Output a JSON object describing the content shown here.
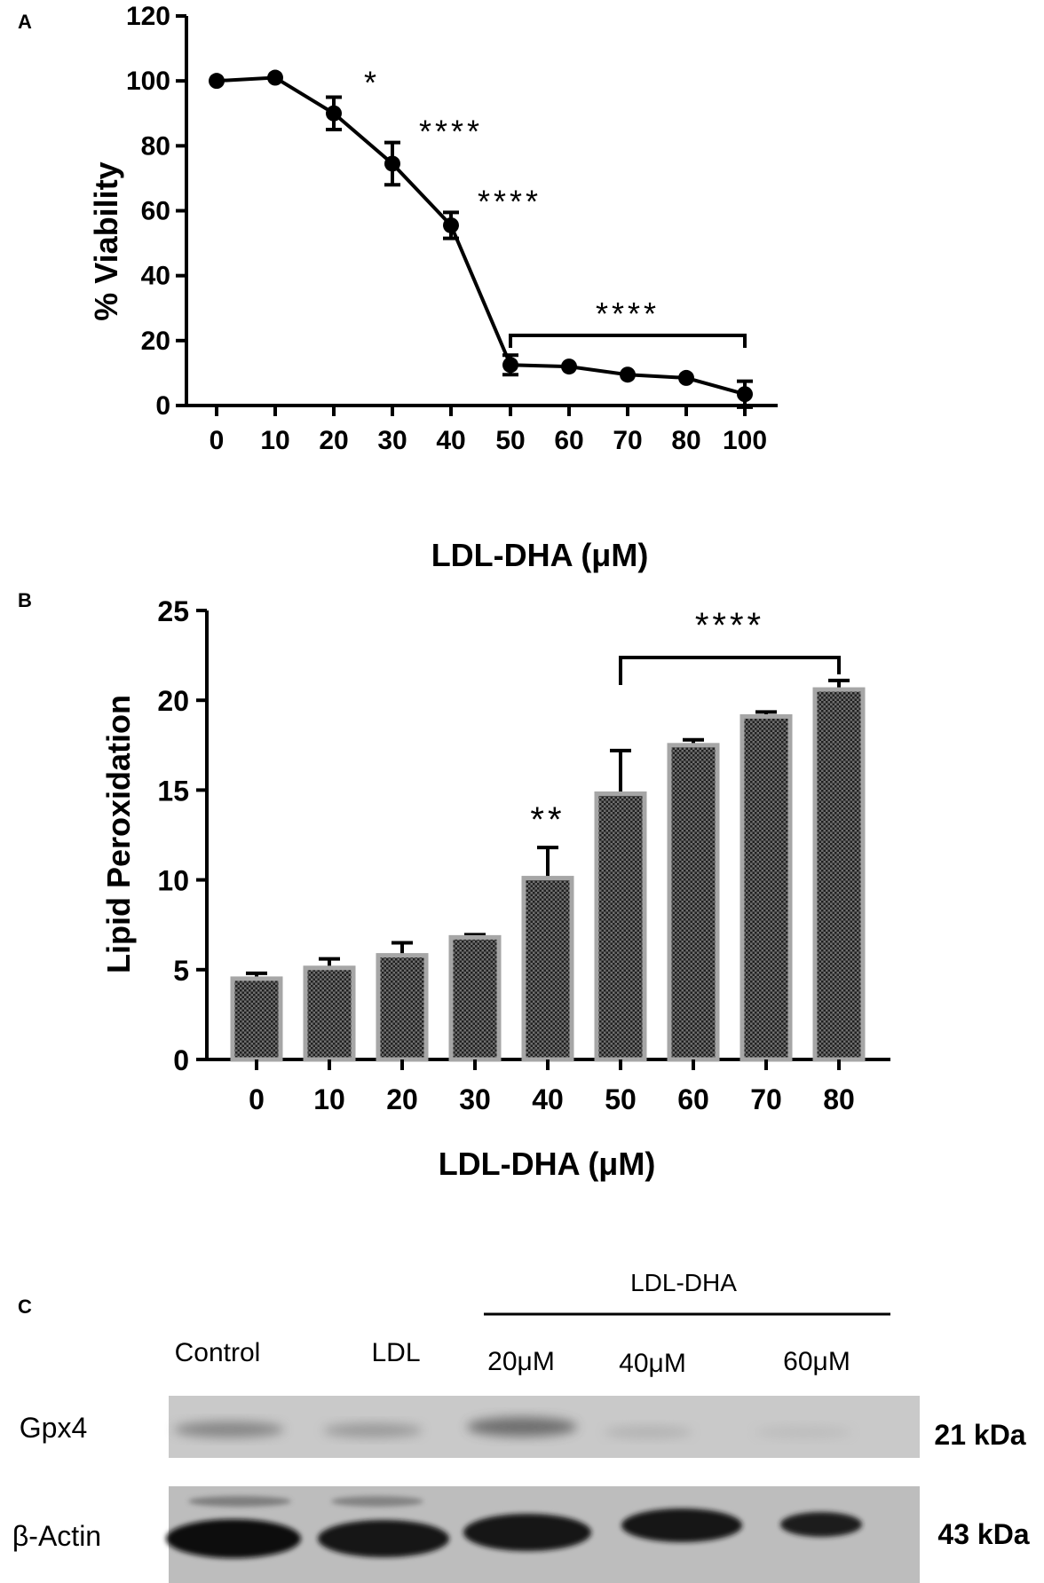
{
  "chart_data": [
    {
      "panel": "A",
      "type": "line",
      "xlabel": "LDL-DHA (μM)",
      "ylabel": "% Viability",
      "categories": [
        "0",
        "10",
        "20",
        "30",
        "40",
        "50",
        "60",
        "70",
        "80",
        "100"
      ],
      "values": [
        100,
        101,
        90,
        74.5,
        55.5,
        12.5,
        12,
        9.5,
        8.5,
        3.5
      ],
      "errors": [
        0,
        0,
        5,
        6.5,
        4,
        3,
        0,
        0,
        0,
        4
      ],
      "ylim": [
        0,
        120
      ],
      "yticks": [
        "0",
        "20",
        "40",
        "60",
        "80",
        "100",
        "120"
      ],
      "annotations": [
        {
          "category_index": 2,
          "text": "*"
        },
        {
          "category_index": 3,
          "text": "****"
        },
        {
          "category_index": 4,
          "text": "****"
        }
      ],
      "bracket": {
        "from_index": 5,
        "to_index": 9,
        "text": "****"
      }
    },
    {
      "panel": "B",
      "type": "bar",
      "xlabel": "LDL-DHA (μM)",
      "ylabel": "Lipid  Peroxidation",
      "categories": [
        "0",
        "10",
        "20",
        "30",
        "40",
        "50",
        "60",
        "70",
        "80"
      ],
      "values": [
        4.5,
        5.1,
        5.8,
        6.8,
        10.1,
        14.8,
        17.5,
        19.1,
        20.6
      ],
      "errors": [
        0.3,
        0.5,
        0.7,
        0.15,
        1.7,
        2.4,
        0.3,
        0.25,
        0.5
      ],
      "ylim": [
        0,
        25
      ],
      "yticks": [
        "0",
        "5",
        "10",
        "15",
        "20",
        "25"
      ],
      "annotations": [
        {
          "category_index": 4,
          "text": "**"
        }
      ],
      "bracket": {
        "from_index": 5,
        "to_index": 8,
        "text": "****"
      }
    }
  ],
  "blot": {
    "panel": "C",
    "treatment_label": "LDL-DHA",
    "lanes": [
      "Control",
      "LDL",
      "20μM",
      "40μM",
      "60μM"
    ],
    "rows": [
      {
        "protein": "Gpx4",
        "size": "21 kDa"
      },
      {
        "protein": "β-Actin",
        "size": "43 kDa"
      }
    ]
  }
}
